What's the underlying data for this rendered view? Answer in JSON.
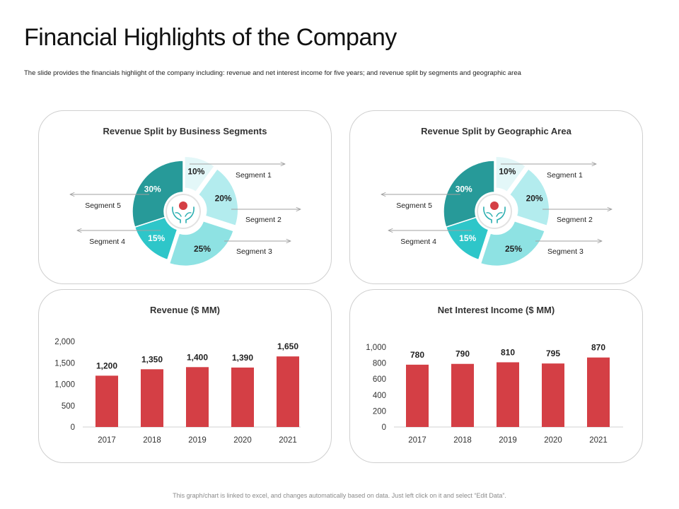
{
  "title": "Financial Highlights of the Company",
  "subtitle": "The slide provides the financials  highlight of the company including: revenue and net interest income for five years; and revenue split by segments and geographic area",
  "footer": "This graph/chart is linked to excel, and changes automatically based on data. Just left click on it and select “Edit Data”.",
  "colors": {
    "bar": "#d43f45",
    "segments": [
      "#e3f7f8",
      "#b3ecee",
      "#8ee2e3",
      "#2ec6c9",
      "#279a99"
    ],
    "arrow": "#a0a0a0",
    "icon": "#2aaeb0",
    "icon_accent": "#d43f45"
  },
  "center_icon": "hands-holding-coin-icon",
  "chart_data": [
    {
      "type": "pie",
      "title": "Revenue Split by Business Segments",
      "categories": [
        "Segment 1",
        "Segment 2",
        "Segment 3",
        "Segment 4",
        "Segment 5"
      ],
      "values": [
        10,
        20,
        25,
        15,
        30
      ],
      "labels": [
        "10%",
        "20%",
        "25%",
        "15%",
        "30%"
      ]
    },
    {
      "type": "pie",
      "title": "Revenue Split by Geographic Area",
      "categories": [
        "Segment 1",
        "Segment 2",
        "Segment 3",
        "Segment 4",
        "Segment 5"
      ],
      "values": [
        10,
        20,
        25,
        15,
        30
      ],
      "labels": [
        "10%",
        "20%",
        "25%",
        "15%",
        "30%"
      ]
    },
    {
      "type": "bar",
      "title": "Revenue ($ MM)",
      "categories": [
        "2017",
        "2018",
        "2019",
        "2020",
        "2021"
      ],
      "values": [
        1200,
        1350,
        1400,
        1390,
        1650
      ],
      "data_labels": [
        "1,200",
        "1,350",
        "1,400",
        "1,390",
        "1,650"
      ],
      "yticks": [
        0,
        500,
        1000,
        1500,
        2000
      ],
      "ytick_labels": [
        "0",
        "500",
        "1,000",
        "1,500",
        "2,000"
      ],
      "ylim": [
        0,
        2000
      ]
    },
    {
      "type": "bar",
      "title": "Net Interest Income ($ MM)",
      "categories": [
        "2017",
        "2018",
        "2019",
        "2020",
        "2021"
      ],
      "values": [
        780,
        790,
        810,
        795,
        870
      ],
      "data_labels": [
        "780",
        "790",
        "810",
        "795",
        "870"
      ],
      "yticks": [
        0,
        200,
        400,
        600,
        800,
        1000
      ],
      "ytick_labels": [
        "0",
        "200",
        "400",
        "600",
        "800",
        "1,000"
      ],
      "ylim": [
        0,
        1000
      ]
    }
  ]
}
